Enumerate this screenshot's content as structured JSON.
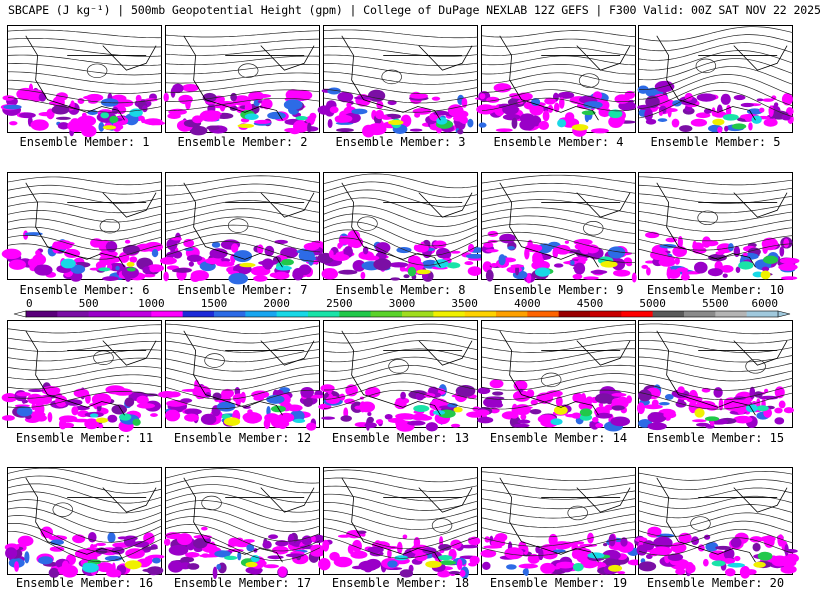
{
  "header": {
    "title": "SBCAPE (J kg⁻¹) | 500mb Geopotential Height (gpm) | College of DuPage NEXLAB 12Z GEFS | F300 Valid: 00Z SAT NOV 22 2025"
  },
  "colors": {
    "background": "#ffffff",
    "contour": "#222222",
    "border": "#000000",
    "cape_palette": [
      "#5a007a",
      "#7b0fa5",
      "#9a00c8",
      "#c000e0",
      "#ff00ff",
      "#1e2bd8",
      "#2d6be6",
      "#19a6f0",
      "#18d8e6",
      "#19e3a8",
      "#22c84a",
      "#5bd22b",
      "#a0dc1e",
      "#f0f000",
      "#ffd200",
      "#ffa000",
      "#ff6400",
      "#9a0000",
      "#c80000",
      "#ff0000",
      "#5a5a5a",
      "#8a8a8a",
      "#b4b4b4",
      "#a0c8dc"
    ]
  },
  "colorbar": {
    "ticks": [
      "0",
      "500",
      "1000",
      "1500",
      "2000",
      "2500",
      "3000",
      "3500",
      "4000",
      "4500",
      "5000",
      "5500",
      "6000"
    ]
  },
  "ensemble": {
    "members": [
      {
        "label": "Ensemble Member: 1",
        "icon": "cape-map"
      },
      {
        "label": "Ensemble Member: 2",
        "icon": "cape-map"
      },
      {
        "label": "Ensemble Member: 3",
        "icon": "cape-map"
      },
      {
        "label": "Ensemble Member: 4",
        "icon": "cape-map"
      },
      {
        "label": "Ensemble Member: 5",
        "icon": "cape-map"
      },
      {
        "label": "Ensemble Member: 6",
        "icon": "cape-map"
      },
      {
        "label": "Ensemble Member: 7",
        "icon": "cape-map"
      },
      {
        "label": "Ensemble Member: 8",
        "icon": "cape-map"
      },
      {
        "label": "Ensemble Member: 9",
        "icon": "cape-map"
      },
      {
        "label": "Ensemble Member: 10",
        "icon": "cape-map"
      },
      {
        "label": "Ensemble Member: 11",
        "icon": "cape-map"
      },
      {
        "label": "Ensemble Member: 12",
        "icon": "cape-map"
      },
      {
        "label": "Ensemble Member: 13",
        "icon": "cape-map"
      },
      {
        "label": "Ensemble Member: 14",
        "icon": "cape-map"
      },
      {
        "label": "Ensemble Member: 15",
        "icon": "cape-map"
      },
      {
        "label": "Ensemble Member: 16",
        "icon": "cape-map"
      },
      {
        "label": "Ensemble Member: 17",
        "icon": "cape-map"
      },
      {
        "label": "Ensemble Member: 18",
        "icon": "cape-map"
      },
      {
        "label": "Ensemble Member: 19",
        "icon": "cape-map"
      },
      {
        "label": "Ensemble Member: 20",
        "icon": "cape-map"
      }
    ]
  }
}
